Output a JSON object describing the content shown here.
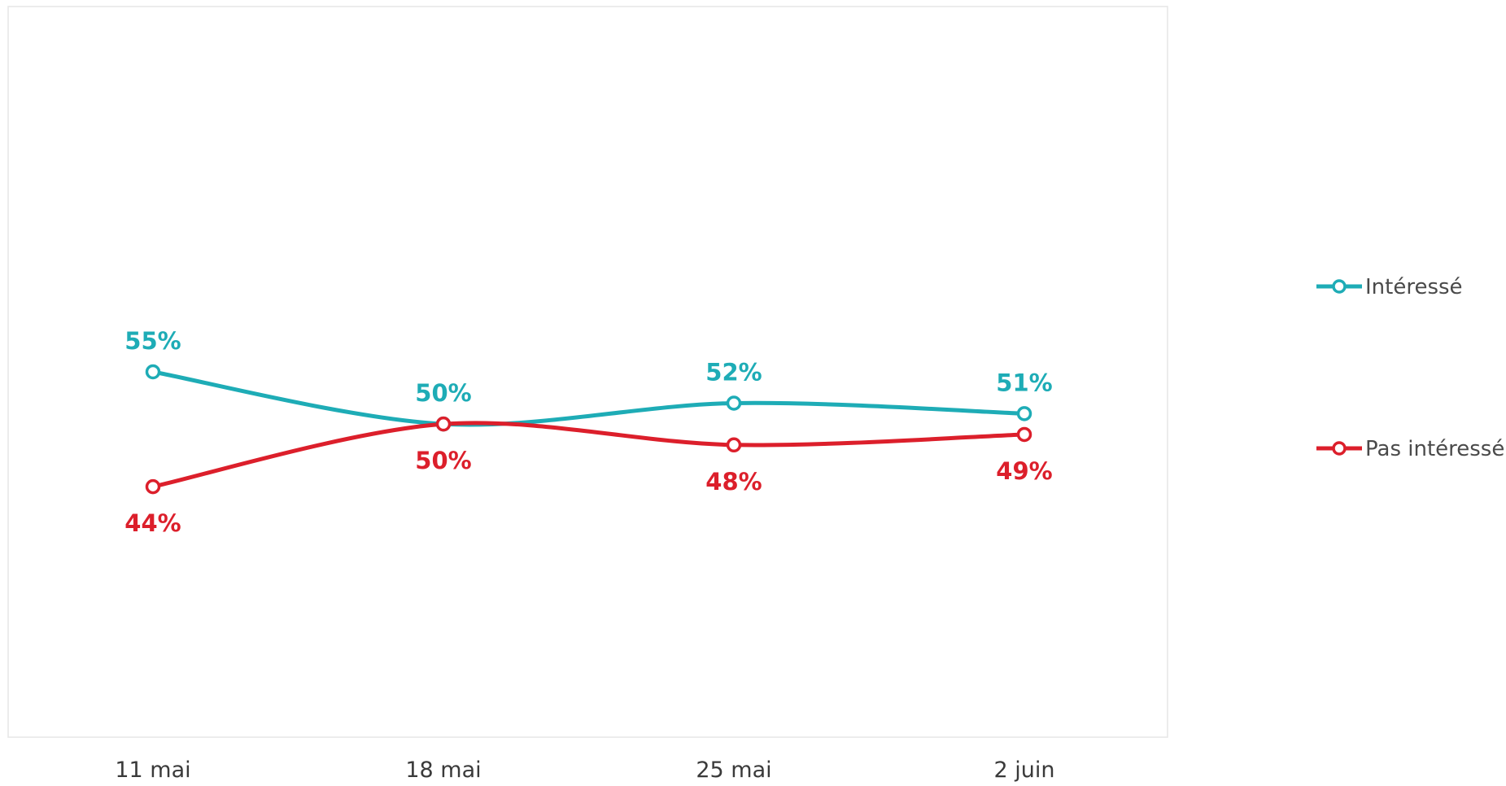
{
  "chart_data": {
    "type": "line",
    "title": "",
    "xlabel": "",
    "ylabel": "",
    "categories": [
      "11 mai",
      "18 mai",
      "25 mai",
      "2 juin"
    ],
    "ylim": [
      20,
      90
    ],
    "grid": false,
    "legend_position": "right",
    "series": [
      {
        "name": "Intéressé",
        "color": "#1eacb6",
        "values": [
          55,
          50,
          52,
          51
        ],
        "labels": [
          "55%",
          "50%",
          "52%",
          "51%"
        ]
      },
      {
        "name": "Pas intéressé",
        "color": "#dc1f2b",
        "values": [
          44,
          50,
          48,
          49
        ],
        "labels": [
          "44%",
          "50%",
          "48%",
          "49%"
        ]
      }
    ]
  }
}
